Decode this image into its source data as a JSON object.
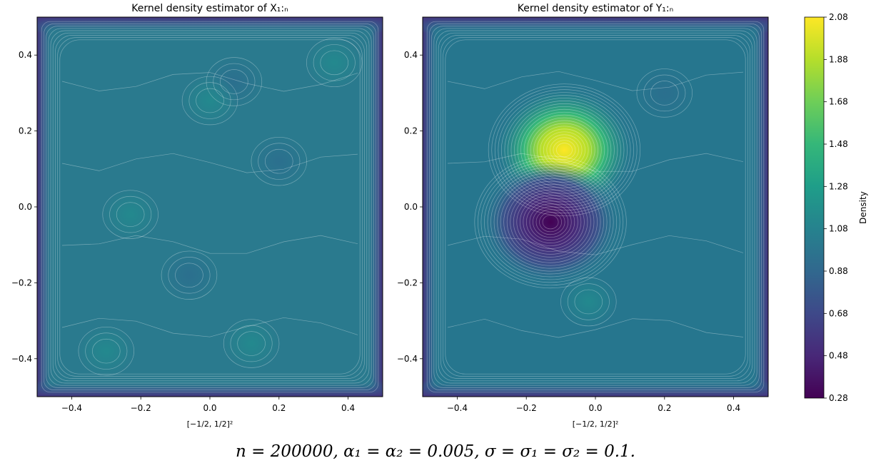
{
  "caption": "n = 200000, α₁ = α₂ = 0.005, σ = σ₁ = σ₂ = 0.1.",
  "colorbar": {
    "label": "Density",
    "min": 0.28,
    "max": 2.08,
    "tick_labels": [
      "2.08",
      "1.88",
      "1.68",
      "1.48",
      "1.28",
      "1.08",
      "0.88",
      "0.68",
      "0.48",
      "0.28"
    ],
    "colormap": [
      "#440154",
      "#482878",
      "#3e4989",
      "#31688e",
      "#26828e",
      "#1f9e89",
      "#35b779",
      "#6ece58",
      "#b5de2b",
      "#fde725"
    ]
  },
  "chart_data": [
    {
      "type": "heatmap",
      "title": "Kernel density estimator of X₁:ₙ",
      "xlabel": "[−1/2, 1/2]²",
      "ylabel": "",
      "xlim": [
        -0.5,
        0.5
      ],
      "ylim": [
        -0.5,
        0.5
      ],
      "x_ticks": [
        -0.4,
        -0.2,
        0.0,
        0.2,
        0.4
      ],
      "y_ticks": [
        0.4,
        0.2,
        0.0,
        -0.2,
        -0.4
      ],
      "x_tick_labels": [
        "−0.4",
        "−0.2",
        "0.0",
        "0.2",
        "0.4"
      ],
      "y_tick_labels": [
        "0.4",
        "0.2",
        "0.0",
        "−0.2",
        "−0.4"
      ],
      "base_density": 1.0,
      "features": [
        {
          "x": -0.23,
          "y": -0.02,
          "density": 1.04
        },
        {
          "x": 0.07,
          "y": 0.33,
          "density": 0.98
        },
        {
          "x": 0.0,
          "y": 0.28,
          "density": 1.04
        },
        {
          "x": -0.3,
          "y": -0.38,
          "density": 1.05
        },
        {
          "x": 0.12,
          "y": -0.36,
          "density": 1.04
        },
        {
          "x": 0.36,
          "y": 0.38,
          "density": 1.04
        },
        {
          "x": -0.06,
          "y": -0.18,
          "density": 0.98
        },
        {
          "x": 0.2,
          "y": 0.12,
          "density": 0.98
        }
      ]
    },
    {
      "type": "heatmap",
      "title": "Kernel density estimator of Y₁:ₙ",
      "xlabel": "[−1/2, 1/2]²",
      "ylabel": "",
      "xlim": [
        -0.5,
        0.5
      ],
      "ylim": [
        -0.5,
        0.5
      ],
      "x_ticks": [
        -0.4,
        -0.2,
        0.0,
        0.2,
        0.4
      ],
      "y_ticks": [
        0.4,
        0.2,
        0.0,
        -0.2,
        -0.4
      ],
      "x_tick_labels": [
        "−0.4",
        "−0.2",
        "0.0",
        "0.2",
        "0.4"
      ],
      "y_tick_labels": [
        "0.4",
        "0.2",
        "0.0",
        "−0.2",
        "−0.4"
      ],
      "base_density": 0.94,
      "features": [
        {
          "x": -0.09,
          "y": 0.15,
          "density": 2.08
        },
        {
          "x": -0.13,
          "y": -0.04,
          "density": 0.44
        },
        {
          "x": -0.02,
          "y": -0.25,
          "density": 1.05
        },
        {
          "x": 0.2,
          "y": 0.3,
          "density": 0.88
        }
      ]
    }
  ]
}
